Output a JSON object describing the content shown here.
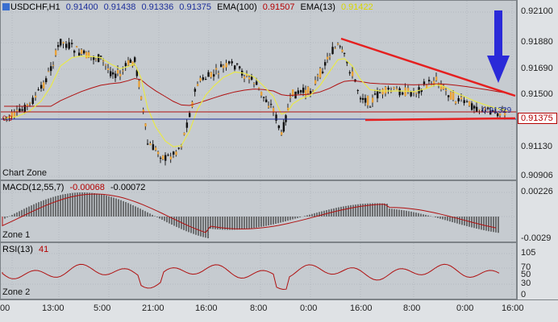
{
  "header": {
    "symbol": "USDCHF,H1",
    "ohlc": [
      "0.91400",
      "0.91438",
      "0.91336",
      "0.91375"
    ],
    "ema100_label": "EMA(100)",
    "ema100_value": "0.91507",
    "ema13_label": "EMA(13)",
    "ema13_value": "0.91422"
  },
  "chart": {
    "zone_label": "Chart Zone",
    "left_label": "0.9",
    "price_annotation": "0.91329",
    "current_price": "0.91375",
    "y_ticks": [
      "0.92100",
      "0.91880",
      "0.91690",
      "0.91500",
      "0.91130",
      "0.90906"
    ],
    "colors": {
      "ema13": "#e8e84a",
      "ema100": "#b01010",
      "trendline": "#e52020",
      "arrow": "#2a2ad8"
    }
  },
  "macd": {
    "label": "MACD(12,55,7)",
    "value1": "-0.00068",
    "value2": "-0.00072",
    "zone_label": "Zone 1",
    "y_ticks": [
      "0.00226",
      "-0.0029"
    ]
  },
  "rsi": {
    "label": "RSI(13)",
    "value": "41",
    "zone_label": "Zone 2",
    "y_ticks": [
      "105",
      "70",
      "50",
      "30",
      "0"
    ]
  },
  "x_axis": {
    "labels": [
      "00",
      "13:00",
      "5:00",
      "21:00",
      "16:00",
      "8:00",
      "0:00",
      "16:00",
      "8:00",
      "0:00",
      "16:00"
    ]
  }
}
